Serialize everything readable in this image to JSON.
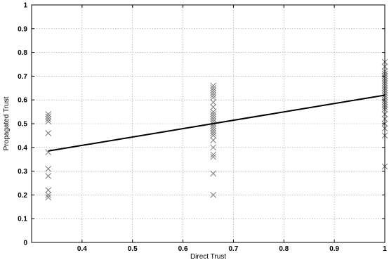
{
  "chart_data": {
    "type": "scatter",
    "title": "",
    "xlabel": "Direct Trust",
    "ylabel": "Propagated Trust",
    "xlim": [
      0.3,
      1.0
    ],
    "ylim": [
      0,
      1
    ],
    "xticks": [
      "0.4",
      "0.5",
      "0.6",
      "0.7",
      "0.8",
      "0.9",
      "1"
    ],
    "yticks": [
      "0",
      "0.1",
      "0.2",
      "0.3",
      "0.4",
      "0.5",
      "0.6",
      "0.7",
      "0.8",
      "0.9",
      "1"
    ],
    "grid": true,
    "marker": "x",
    "marker_color": "#7a7a7a",
    "line_color": "#000000",
    "points": [
      {
        "x": 0.333,
        "y": 0.19
      },
      {
        "x": 0.333,
        "y": 0.2
      },
      {
        "x": 0.333,
        "y": 0.22
      },
      {
        "x": 0.333,
        "y": 0.28
      },
      {
        "x": 0.333,
        "y": 0.31
      },
      {
        "x": 0.333,
        "y": 0.38
      },
      {
        "x": 0.333,
        "y": 0.46
      },
      {
        "x": 0.333,
        "y": 0.51
      },
      {
        "x": 0.333,
        "y": 0.52
      },
      {
        "x": 0.333,
        "y": 0.53
      },
      {
        "x": 0.333,
        "y": 0.54
      },
      {
        "x": 0.66,
        "y": 0.2
      },
      {
        "x": 0.66,
        "y": 0.29
      },
      {
        "x": 0.66,
        "y": 0.36
      },
      {
        "x": 0.66,
        "y": 0.37
      },
      {
        "x": 0.66,
        "y": 0.4
      },
      {
        "x": 0.66,
        "y": 0.43
      },
      {
        "x": 0.66,
        "y": 0.45
      },
      {
        "x": 0.66,
        "y": 0.46
      },
      {
        "x": 0.66,
        "y": 0.47
      },
      {
        "x": 0.66,
        "y": 0.48
      },
      {
        "x": 0.66,
        "y": 0.49
      },
      {
        "x": 0.66,
        "y": 0.5
      },
      {
        "x": 0.66,
        "y": 0.51
      },
      {
        "x": 0.66,
        "y": 0.52
      },
      {
        "x": 0.66,
        "y": 0.53
      },
      {
        "x": 0.66,
        "y": 0.54
      },
      {
        "x": 0.66,
        "y": 0.55
      },
      {
        "x": 0.66,
        "y": 0.57
      },
      {
        "x": 0.66,
        "y": 0.59
      },
      {
        "x": 0.66,
        "y": 0.61
      },
      {
        "x": 0.66,
        "y": 0.62
      },
      {
        "x": 0.66,
        "y": 0.63
      },
      {
        "x": 0.66,
        "y": 0.64
      },
      {
        "x": 0.66,
        "y": 0.65
      },
      {
        "x": 0.66,
        "y": 0.66
      },
      {
        "x": 1.0,
        "y": 0.32
      },
      {
        "x": 1.0,
        "y": 0.45
      },
      {
        "x": 1.0,
        "y": 0.48
      },
      {
        "x": 1.0,
        "y": 0.5
      },
      {
        "x": 1.0,
        "y": 0.52
      },
      {
        "x": 1.0,
        "y": 0.54
      },
      {
        "x": 1.0,
        "y": 0.56
      },
      {
        "x": 1.0,
        "y": 0.57
      },
      {
        "x": 1.0,
        "y": 0.58
      },
      {
        "x": 1.0,
        "y": 0.59
      },
      {
        "x": 1.0,
        "y": 0.6
      },
      {
        "x": 1.0,
        "y": 0.61
      },
      {
        "x": 1.0,
        "y": 0.62
      },
      {
        "x": 1.0,
        "y": 0.63
      },
      {
        "x": 1.0,
        "y": 0.64
      },
      {
        "x": 1.0,
        "y": 0.65
      },
      {
        "x": 1.0,
        "y": 0.66
      },
      {
        "x": 1.0,
        "y": 0.67
      },
      {
        "x": 1.0,
        "y": 0.68
      },
      {
        "x": 1.0,
        "y": 0.69
      },
      {
        "x": 1.0,
        "y": 0.7
      },
      {
        "x": 1.0,
        "y": 0.71
      },
      {
        "x": 1.0,
        "y": 0.72
      },
      {
        "x": 1.0,
        "y": 0.74
      },
      {
        "x": 1.0,
        "y": 0.76
      }
    ],
    "fit_line": {
      "x": [
        0.333,
        1.0
      ],
      "y": [
        0.385,
        0.62
      ]
    }
  }
}
